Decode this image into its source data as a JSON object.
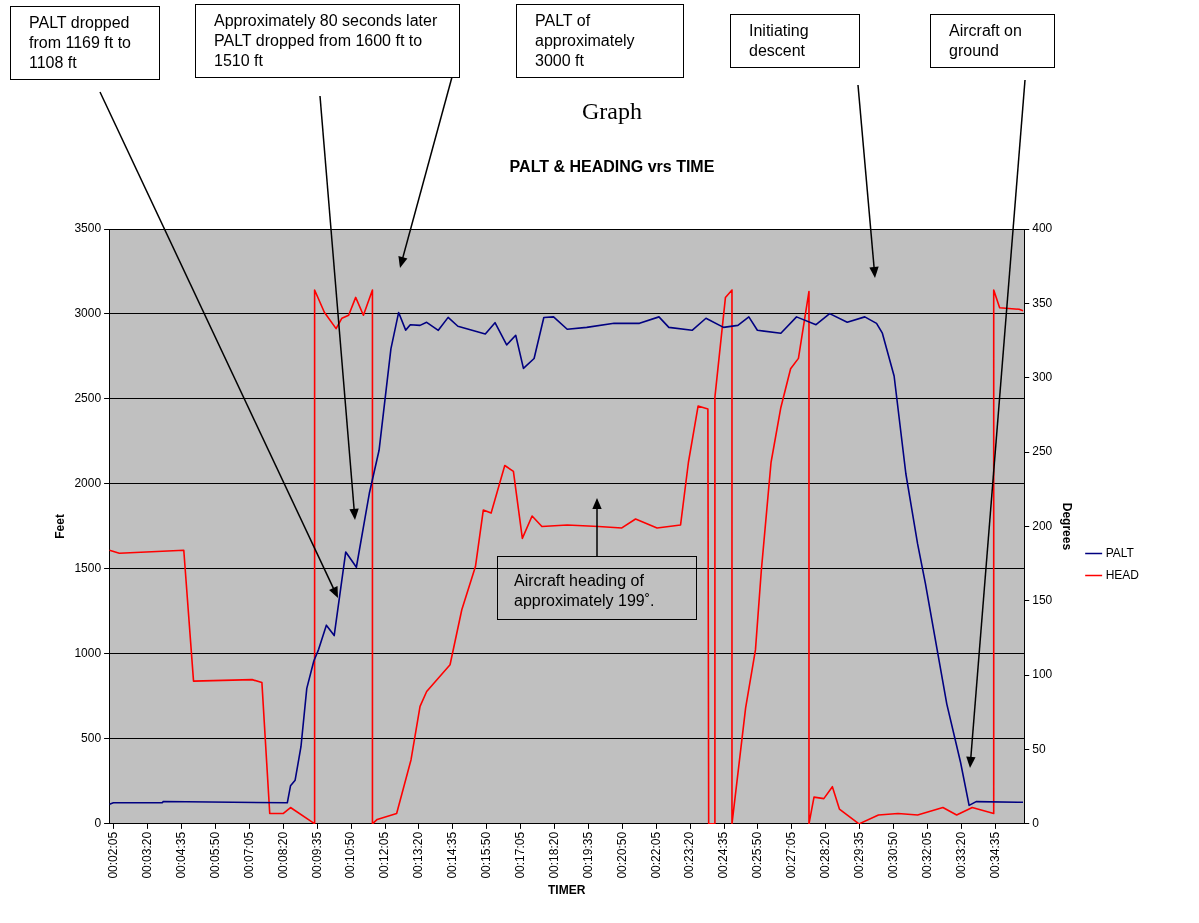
{
  "chart_data": {
    "type": "line",
    "title": "PALT & HEADING vrs TIME",
    "subtitle": "Graph",
    "xlabel": "TIMER",
    "ylabel": "Feet",
    "y2label": "Degrees",
    "xlim": [
      0.03182,
      0.59422
    ],
    "xticks": [
      {
        "value": 0.03472,
        "label": "00:02:05"
      },
      {
        "value": 0.05556,
        "label": "00:03:20"
      },
      {
        "value": 0.07639,
        "label": "00:04:35"
      },
      {
        "value": 0.09722,
        "label": "00:05:50"
      },
      {
        "value": 0.11806,
        "label": "00:07:05"
      },
      {
        "value": 0.13889,
        "label": "00:08:20"
      },
      {
        "value": 0.15972,
        "label": "00:09:35"
      },
      {
        "value": 0.18056,
        "label": "00:10:50"
      },
      {
        "value": 0.20139,
        "label": "00:12:05"
      },
      {
        "value": 0.22222,
        "label": "00:13:20"
      },
      {
        "value": 0.24306,
        "label": "00:14:35"
      },
      {
        "value": 0.26389,
        "label": "00:15:50"
      },
      {
        "value": 0.28472,
        "label": "00:17:05"
      },
      {
        "value": 0.30556,
        "label": "00:18:20"
      },
      {
        "value": 0.32639,
        "label": "00:19:35"
      },
      {
        "value": 0.34722,
        "label": "00:20:50"
      },
      {
        "value": 0.36806,
        "label": "00:22:05"
      },
      {
        "value": 0.38889,
        "label": "00:23:20"
      },
      {
        "value": 0.40972,
        "label": "00:24:35"
      },
      {
        "value": 0.43056,
        "label": "00:25:50"
      },
      {
        "value": 0.45139,
        "label": "00:27:05"
      },
      {
        "value": 0.47222,
        "label": "00:28:20"
      },
      {
        "value": 0.49306,
        "label": "00:29:35"
      },
      {
        "value": 0.51389,
        "label": "00:30:50"
      },
      {
        "value": 0.53472,
        "label": "00:32:05"
      },
      {
        "value": 0.55556,
        "label": "00:33:20"
      },
      {
        "value": 0.57639,
        "label": "00:34:35"
      }
    ],
    "ylim": [
      0,
      3500
    ],
    "yticks": [
      0,
      500,
      1000,
      1500,
      2000,
      2500,
      3000,
      3500
    ],
    "y2lim": [
      0,
      400
    ],
    "y2ticks": [
      0,
      50,
      100,
      150,
      200,
      250,
      300,
      350,
      400
    ],
    "grid": "y",
    "legend": "right",
    "series": [
      {
        "name": "PALT",
        "color": "#000080",
        "x": [
          0.03207,
          0.03447,
          0.06434,
          0.06526,
          0.14134,
          0.14331,
          0.14615,
          0.14973,
          0.15331,
          0.15763,
          0.16059,
          0.16534,
          0.17015,
          0.17725,
          0.18379,
          0.19175,
          0.19773,
          0.20501,
          0.20976,
          0.21408,
          0.21692,
          0.22291,
          0.22698,
          0.23413,
          0.24018,
          0.24617,
          0.26301,
          0.26899,
          0.27615,
          0.28171,
          0.28646,
          0.293,
          0.29898,
          0.30497,
          0.31336,
          0.32533,
          0.34217,
          0.35778,
          0.36975,
          0.3758,
          0.39011,
          0.39863,
          0.40942,
          0.41825,
          0.42497,
          0.43022,
          0.44465,
          0.45428,
          0.46625,
          0.47464,
          0.48544,
          0.49624,
          0.50345,
          0.50703,
          0.51425,
          0.52147,
          0.52869,
          0.53344,
          0.54066,
          0.54664,
          0.5551,
          0.56034,
          0.56466,
          0.59348
        ],
        "values": [
          115,
          124,
          124,
          132,
          124,
          224,
          257,
          454,
          797,
          958,
          1027,
          1169,
          1108,
          1600,
          1510,
          1945,
          2198,
          2795,
          3009,
          2905,
          2937,
          2933,
          2951,
          2904,
          2980,
          2928,
          2882,
          2949,
          2818,
          2875,
          2680,
          2738,
          2979,
          2983,
          2910,
          2921,
          2945,
          2945,
          2983,
          2921,
          2904,
          2975,
          2921,
          2933,
          2983,
          2904,
          2887,
          2983,
          2937,
          3002,
          2951,
          2983,
          2945,
          2887,
          2635,
          2060,
          1647,
          1417,
          1027,
          705,
          361,
          109,
          131,
          127
        ]
      },
      {
        "name": "HEAD",
        "color": "#ff0000",
        "axis": "y2",
        "x": [
          0.03207,
          0.03811,
          0.07772,
          0.08371,
          0.11974,
          0.12573,
          0.13054,
          0.13893,
          0.14331,
          0.15689,
          0.15812,
          0.15812,
          0.1641,
          0.17132,
          0.1749,
          0.17904,
          0.18336,
          0.18811,
          0.19366,
          0.19366,
          0.19656,
          0.20853,
          0.21735,
          0.22291,
          0.22698,
          0.24135,
          0.24857,
          0.25696,
          0.26178,
          0.26659,
          0.27498,
          0.28029,
          0.28578,
          0.29176,
          0.29781,
          0.31336,
          0.33261,
          0.34692,
          0.35537,
          0.36858,
          0.38302,
          0.38783,
          0.39381,
          0.3998,
          0.40029,
          0.40412,
          0.40412,
          0.4106,
          0.41461,
          0.41461,
          0.423,
          0.42904,
          0.43262,
          0.43861,
          0.44465,
          0.45064,
          0.45545,
          0.46193,
          0.46193,
          0.46502,
          0.47106,
          0.47631,
          0.48063,
          0.49266,
          0.50463,
          0.51666,
          0.52869,
          0.54424,
          0.55269,
          0.56226,
          0.57546,
          0.57546,
          0.5791,
          0.59107,
          0.59348
        ],
        "values": [
          184,
          182,
          184,
          96,
          97,
          95,
          7,
          7,
          11,
          1,
          0,
          359,
          344,
          333,
          340,
          342,
          354,
          342,
          359,
          0,
          3,
          7,
          43,
          79,
          89,
          107,
          144,
          173,
          211,
          209,
          241,
          237,
          192,
          207,
          200,
          201,
          200,
          199,
          205,
          199,
          201,
          243,
          281,
          279,
          0,
          0,
          287,
          354,
          359,
          0,
          78,
          117,
          170,
          243,
          280,
          306,
          313,
          358,
          0,
          18,
          17,
          25,
          10,
          0,
          6,
          7,
          6,
          11,
          6,
          11,
          7,
          359,
          347,
          346,
          345
        ]
      }
    ],
    "annotations": [
      "PALT dropped from 1169 ft to 1108 ft",
      "Approximately 80 seconds later PALT dropped from 1600 ft to 1510 ft",
      "PALT of approximately 3000 ft",
      "Initiating descent",
      "Aircraft on ground",
      "Aircraft heading  of approximately 199˚."
    ]
  }
}
